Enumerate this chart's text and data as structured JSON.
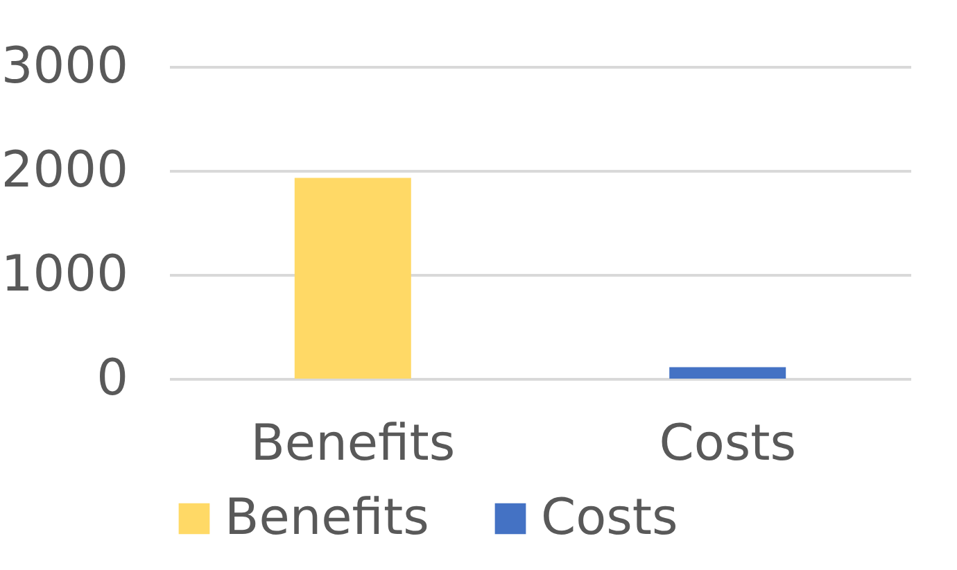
{
  "chart_data": {
    "type": "bar",
    "categories": [
      "Benefits",
      "Costs"
    ],
    "series": [
      {
        "name": "Benefits",
        "color": "#ffd966",
        "values": [
          1930,
          null
        ]
      },
      {
        "name": "Costs",
        "color": "#4472c4",
        "values": [
          null,
          110
        ]
      }
    ],
    "ylim": [
      0,
      3000
    ],
    "yticks": [
      0,
      1000,
      2000,
      3000
    ],
    "grid": "y",
    "legend": "bottom"
  }
}
